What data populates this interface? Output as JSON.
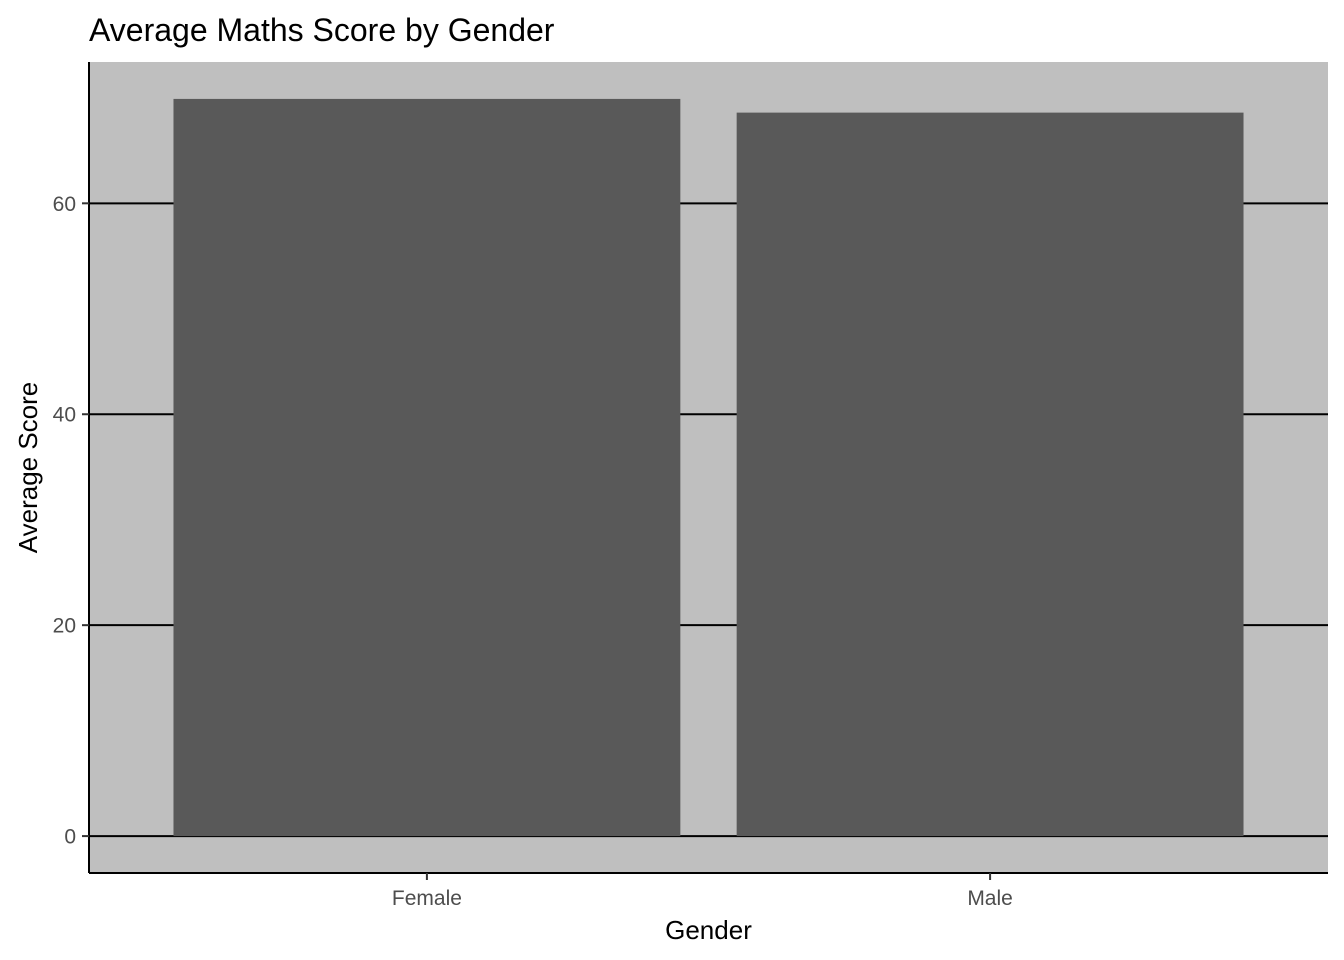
{
  "chart_data": {
    "type": "bar",
    "title": "Average Maths Score by Gender",
    "xlabel": "Gender",
    "ylabel": "Average Score",
    "categories": [
      "Female",
      "Male"
    ],
    "values": [
      69.9,
      68.6
    ],
    "ylim": [
      -3.5,
      73.4
    ],
    "yticks": [
      0,
      20,
      40,
      60
    ],
    "ytick_labels": [
      "0",
      "20",
      "40",
      "60"
    ],
    "grid": "horizontal major lines",
    "legend": "none"
  },
  "colors": {
    "panel_background": "#bfbfbf",
    "bar_fill": "#595959",
    "grid_line": "#000000",
    "axis_line": "#000000"
  }
}
